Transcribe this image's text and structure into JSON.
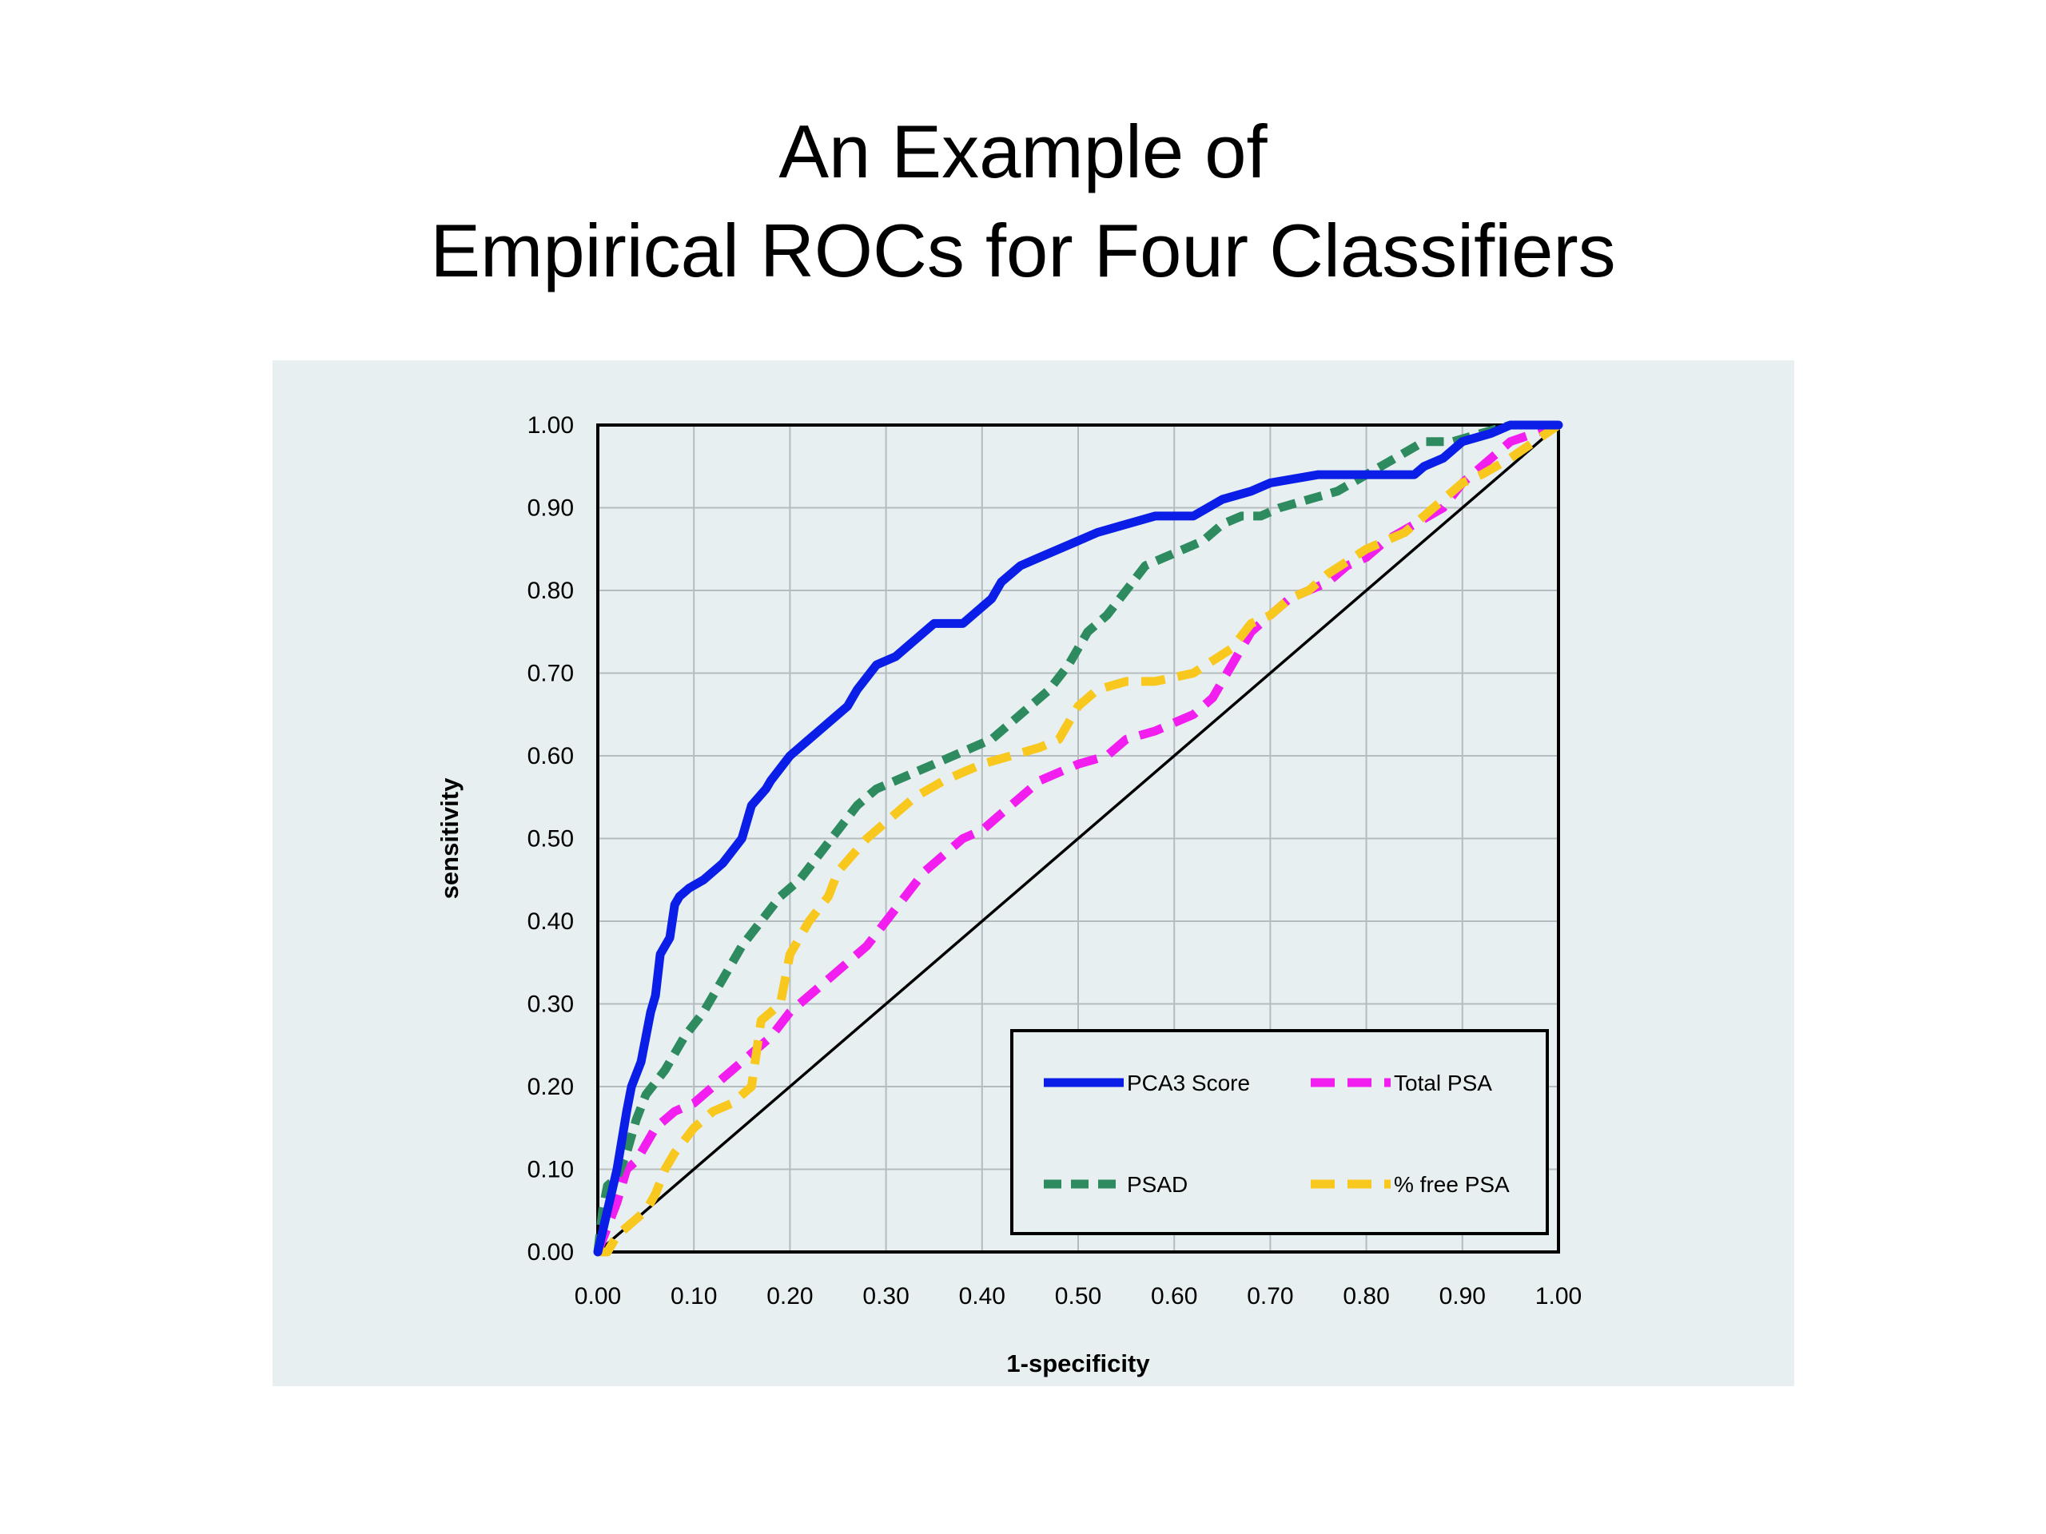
{
  "slide": {
    "title_line1": "An Example of",
    "title_line2": "Empirical ROCs for Four Classifiers"
  },
  "colors": {
    "panel_background": "#e7eff1",
    "grid": "#b5bcc0",
    "pca3": "#0a1ee8",
    "total_psa": "#f21ef0",
    "psad": "#2e8b5f",
    "free_psa": "#f8c81e"
  },
  "chart_data": {
    "type": "line",
    "title": "",
    "xlabel": "1-specificity",
    "ylabel": "sensitivity",
    "xlim": [
      0,
      1
    ],
    "ylim": [
      0,
      1
    ],
    "grid": true,
    "legend_position": "bottom-right",
    "x_ticks": [
      "0.00",
      "0.10",
      "0.20",
      "0.30",
      "0.40",
      "0.50",
      "0.60",
      "0.70",
      "0.80",
      "0.90",
      "1.00"
    ],
    "y_ticks": [
      "0.00",
      "0.10",
      "0.20",
      "0.30",
      "0.40",
      "0.50",
      "0.60",
      "0.70",
      "0.80",
      "0.90",
      "1.00"
    ],
    "series": [
      {
        "name": "PCA3 Score",
        "style": "solid",
        "color": "#0a1ee8",
        "x": [
          0,
          0.01,
          0.02,
          0.03,
          0.035,
          0.045,
          0.05,
          0.055,
          0.06,
          0.065,
          0.07,
          0.075,
          0.08,
          0.085,
          0.095,
          0.11,
          0.13,
          0.15,
          0.16,
          0.175,
          0.18,
          0.2,
          0.22,
          0.24,
          0.26,
          0.27,
          0.29,
          0.31,
          0.33,
          0.35,
          0.38,
          0.39,
          0.41,
          0.42,
          0.44,
          0.46,
          0.5,
          0.52,
          0.55,
          0.58,
          0.62,
          0.65,
          0.68,
          0.7,
          0.75,
          0.8,
          0.85,
          0.86,
          0.88,
          0.9,
          0.93,
          0.95,
          1
        ],
        "y": [
          0,
          0.05,
          0.1,
          0.17,
          0.2,
          0.23,
          0.26,
          0.29,
          0.31,
          0.36,
          0.37,
          0.38,
          0.42,
          0.43,
          0.44,
          0.45,
          0.47,
          0.5,
          0.54,
          0.56,
          0.57,
          0.6,
          0.62,
          0.64,
          0.66,
          0.68,
          0.71,
          0.72,
          0.74,
          0.76,
          0.76,
          0.77,
          0.79,
          0.81,
          0.83,
          0.84,
          0.86,
          0.87,
          0.88,
          0.89,
          0.89,
          0.91,
          0.92,
          0.93,
          0.94,
          0.94,
          0.94,
          0.95,
          0.96,
          0.98,
          0.99,
          1,
          1
        ]
      },
      {
        "name": "Total PSA",
        "style": "dashed",
        "color": "#f21ef0",
        "x": [
          0,
          0.01,
          0.02,
          0.03,
          0.04,
          0.05,
          0.06,
          0.07,
          0.08,
          0.1,
          0.12,
          0.14,
          0.16,
          0.18,
          0.2,
          0.22,
          0.24,
          0.26,
          0.28,
          0.3,
          0.32,
          0.34,
          0.36,
          0.38,
          0.4,
          0.42,
          0.44,
          0.46,
          0.5,
          0.53,
          0.55,
          0.58,
          0.6,
          0.62,
          0.64,
          0.66,
          0.68,
          0.7,
          0.72,
          0.74,
          0.76,
          0.78,
          0.8,
          0.82,
          0.85,
          0.88,
          0.9,
          0.93,
          0.95,
          1
        ],
        "y": [
          0,
          0.03,
          0.06,
          0.1,
          0.11,
          0.13,
          0.15,
          0.16,
          0.17,
          0.18,
          0.2,
          0.22,
          0.24,
          0.26,
          0.29,
          0.31,
          0.33,
          0.35,
          0.37,
          0.4,
          0.43,
          0.46,
          0.48,
          0.5,
          0.51,
          0.53,
          0.55,
          0.57,
          0.59,
          0.6,
          0.62,
          0.63,
          0.64,
          0.65,
          0.67,
          0.71,
          0.75,
          0.77,
          0.79,
          0.8,
          0.81,
          0.83,
          0.84,
          0.86,
          0.88,
          0.9,
          0.93,
          0.96,
          0.98,
          1
        ]
      },
      {
        "name": "PSAD",
        "style": "dashed",
        "color": "#2e8b5f",
        "x": [
          0,
          0.005,
          0.01,
          0.02,
          0.03,
          0.04,
          0.05,
          0.07,
          0.09,
          0.11,
          0.13,
          0.15,
          0.17,
          0.19,
          0.21,
          0.23,
          0.25,
          0.27,
          0.29,
          0.31,
          0.33,
          0.35,
          0.37,
          0.39,
          0.41,
          0.43,
          0.45,
          0.47,
          0.49,
          0.51,
          0.53,
          0.55,
          0.57,
          0.59,
          0.61,
          0.63,
          0.65,
          0.67,
          0.69,
          0.71,
          0.74,
          0.77,
          0.8,
          0.83,
          0.86,
          0.89,
          0.92,
          0.95,
          1
        ],
        "y": [
          0,
          0.05,
          0.08,
          0.09,
          0.12,
          0.16,
          0.19,
          0.22,
          0.26,
          0.29,
          0.33,
          0.37,
          0.4,
          0.43,
          0.45,
          0.48,
          0.51,
          0.54,
          0.56,
          0.57,
          0.58,
          0.59,
          0.6,
          0.61,
          0.62,
          0.64,
          0.66,
          0.68,
          0.71,
          0.75,
          0.77,
          0.8,
          0.83,
          0.84,
          0.85,
          0.86,
          0.88,
          0.89,
          0.89,
          0.9,
          0.91,
          0.92,
          0.94,
          0.96,
          0.98,
          0.98,
          0.99,
          1,
          1
        ]
      },
      {
        "name": "% free PSA",
        "style": "dashed",
        "color": "#f8c81e",
        "x": [
          0,
          0.005,
          0.01,
          0.015,
          0.02,
          0.03,
          0.04,
          0.05,
          0.06,
          0.07,
          0.08,
          0.1,
          0.12,
          0.14,
          0.16,
          0.17,
          0.19,
          0.2,
          0.22,
          0.24,
          0.25,
          0.28,
          0.3,
          0.33,
          0.36,
          0.38,
          0.4,
          0.43,
          0.46,
          0.48,
          0.49,
          0.5,
          0.52,
          0.55,
          0.58,
          0.62,
          0.66,
          0.68,
          0.7,
          0.72,
          0.74,
          0.76,
          0.8,
          0.84,
          0.86,
          0.88,
          0.9,
          0.92,
          0.95,
          1
        ],
        "y": [
          0,
          0,
          0,
          0.01,
          0.02,
          0.03,
          0.04,
          0.05,
          0.07,
          0.1,
          0.12,
          0.15,
          0.17,
          0.18,
          0.2,
          0.28,
          0.3,
          0.36,
          0.4,
          0.43,
          0.46,
          0.5,
          0.52,
          0.55,
          0.57,
          0.58,
          0.59,
          0.6,
          0.61,
          0.62,
          0.64,
          0.66,
          0.68,
          0.69,
          0.69,
          0.7,
          0.73,
          0.76,
          0.77,
          0.79,
          0.8,
          0.82,
          0.85,
          0.87,
          0.89,
          0.91,
          0.93,
          0.94,
          0.96,
          1
        ]
      },
      {
        "name": "",
        "style": "solid",
        "color": "#000000",
        "x": [
          0,
          1
        ],
        "y": [
          0,
          1
        ]
      }
    ]
  }
}
